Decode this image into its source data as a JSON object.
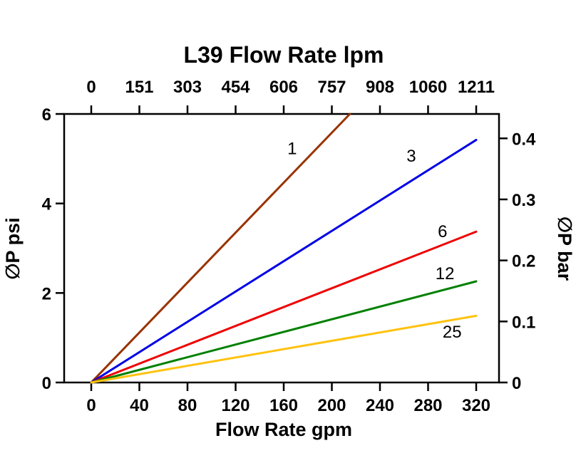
{
  "chart_data": {
    "type": "line",
    "title": "L39 Flow Rate lpm",
    "xlabel_bottom": "Flow Rate gpm",
    "ylabel_left": "∅P psi",
    "ylabel_right": "∅P bar",
    "x_bottom_ticks": [
      0,
      40,
      80,
      120,
      160,
      200,
      240,
      280,
      320
    ],
    "x_top_ticks": [
      0,
      151,
      303,
      454,
      606,
      757,
      908,
      1060,
      1211
    ],
    "y_left_ticks": [
      0,
      2,
      4,
      6
    ],
    "y_right_ticks": [
      0,
      0.1,
      0.2,
      0.3,
      0.4
    ],
    "x_range_gpm": [
      0,
      320
    ],
    "y_range_psi": [
      0,
      6
    ],
    "y_right_range_bar": [
      0,
      0.44
    ],
    "grid": false,
    "legend": "inline-labels",
    "series": [
      {
        "name": "1",
        "color": "#993300",
        "points": [
          [
            0,
            0
          ],
          [
            215,
            6
          ]
        ],
        "label_at": [
          167,
          5.1
        ]
      },
      {
        "name": "3",
        "color": "#0000E6",
        "points": [
          [
            0,
            0
          ],
          [
            320,
            5.42
          ]
        ],
        "label_at": [
          266,
          4.93
        ]
      },
      {
        "name": "6",
        "color": "#EE0000",
        "points": [
          [
            0,
            0
          ],
          [
            320,
            3.37
          ]
        ],
        "label_at": [
          292,
          3.25
        ]
      },
      {
        "name": "12",
        "color": "#008000",
        "points": [
          [
            0,
            0
          ],
          [
            320,
            2.26
          ]
        ],
        "label_at": [
          294,
          2.31
        ]
      },
      {
        "name": "25",
        "color": "#FFC20E",
        "points": [
          [
            0,
            0
          ],
          [
            320,
            1.49
          ]
        ],
        "label_at": [
          300,
          1.0
        ]
      }
    ]
  }
}
